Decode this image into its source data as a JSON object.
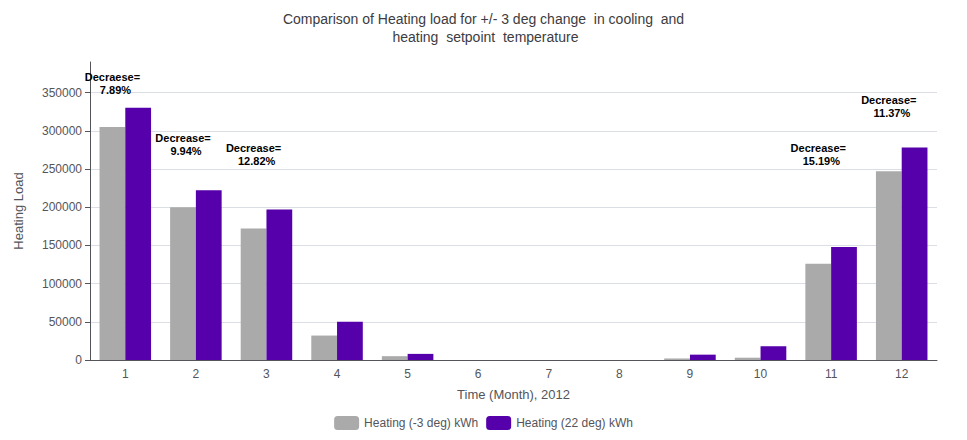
{
  "chart_data": {
    "type": "bar",
    "title": "Comparison of Heating load for +/- 3 deg change  in cooling  and\n heating  setpoint  temperature",
    "xlabel": "Time (Month), 2012",
    "ylabel": "Heating Load",
    "categories": [
      "1",
      "2",
      "3",
      "4",
      "5",
      "6",
      "7",
      "8",
      "9",
      "10",
      "11",
      "12"
    ],
    "series": [
      {
        "name": "Heating (-3 deg) kWh",
        "color": "#aaaaaa",
        "values": [
          305000,
          200000,
          172000,
          32000,
          5000,
          0,
          0,
          0,
          2000,
          3000,
          126000,
          247000
        ]
      },
      {
        "name": "Heating (22 deg) kWh",
        "color": "#5500aa",
        "values": [
          330000,
          222000,
          197000,
          50000,
          8000,
          0,
          0,
          0,
          7000,
          18000,
          148000,
          278000
        ]
      }
    ],
    "annotations": [
      {
        "text": "Decraese=\n  7.89%",
        "x": "1",
        "y": 338000
      },
      {
        "text": "Decrease=\n  9.94%",
        "x": "2",
        "y": 258000
      },
      {
        "text": "Decrease=\n  12.82%",
        "x": "3",
        "y": 245000
      },
      {
        "text": "Decrease=\n  15.19%",
        "x": "11",
        "y": 245000
      },
      {
        "text": "Decrease=\n  11.37%",
        "x": "12",
        "y": 308000
      }
    ],
    "ylim": [
      0,
      390000
    ],
    "yticks": [
      0,
      50000,
      100000,
      150000,
      200000,
      250000,
      300000,
      350000
    ],
    "grid": true,
    "legend": "bottom"
  }
}
